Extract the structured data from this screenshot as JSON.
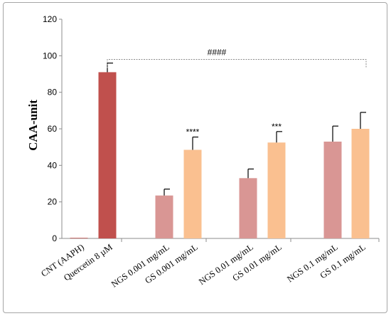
{
  "chart_data": {
    "type": "bar",
    "ylabel": "CAA-unit",
    "ylim": [
      0,
      120
    ],
    "yticks": [
      0,
      20,
      40,
      60,
      80,
      100,
      120
    ],
    "grid": false,
    "categories": [
      "CNT (AAPH)",
      "Quercetin 8 µM",
      "NGS 0.001 mg/mL",
      "GS 0.001 mg/mL",
      "NGS 0.01 mg/mL",
      "GS 0.01 mg/mL",
      "NGS 0.1 mg/mL",
      "GS 0.1 mg/mL"
    ],
    "values": [
      0,
      91,
      23.5,
      48.5,
      33,
      52.5,
      53,
      60
    ],
    "errors": [
      0,
      5,
      3.5,
      7,
      5,
      6,
      8.5,
      9
    ],
    "colors": [
      "#c0504d",
      "#c0504d",
      "#d99694",
      "#fac090",
      "#d99694",
      "#fac090",
      "#d99694",
      "#fac090"
    ],
    "annotations": [
      {
        "category": "GS 0.001 mg/mL",
        "text": "****"
      },
      {
        "category": "GS 0.01 mg/mL",
        "text": "***"
      }
    ],
    "bracket": {
      "from": "Quercetin 8 µM",
      "to": "GS 0.1 mg/mL",
      "y": 98,
      "text": "####"
    }
  }
}
